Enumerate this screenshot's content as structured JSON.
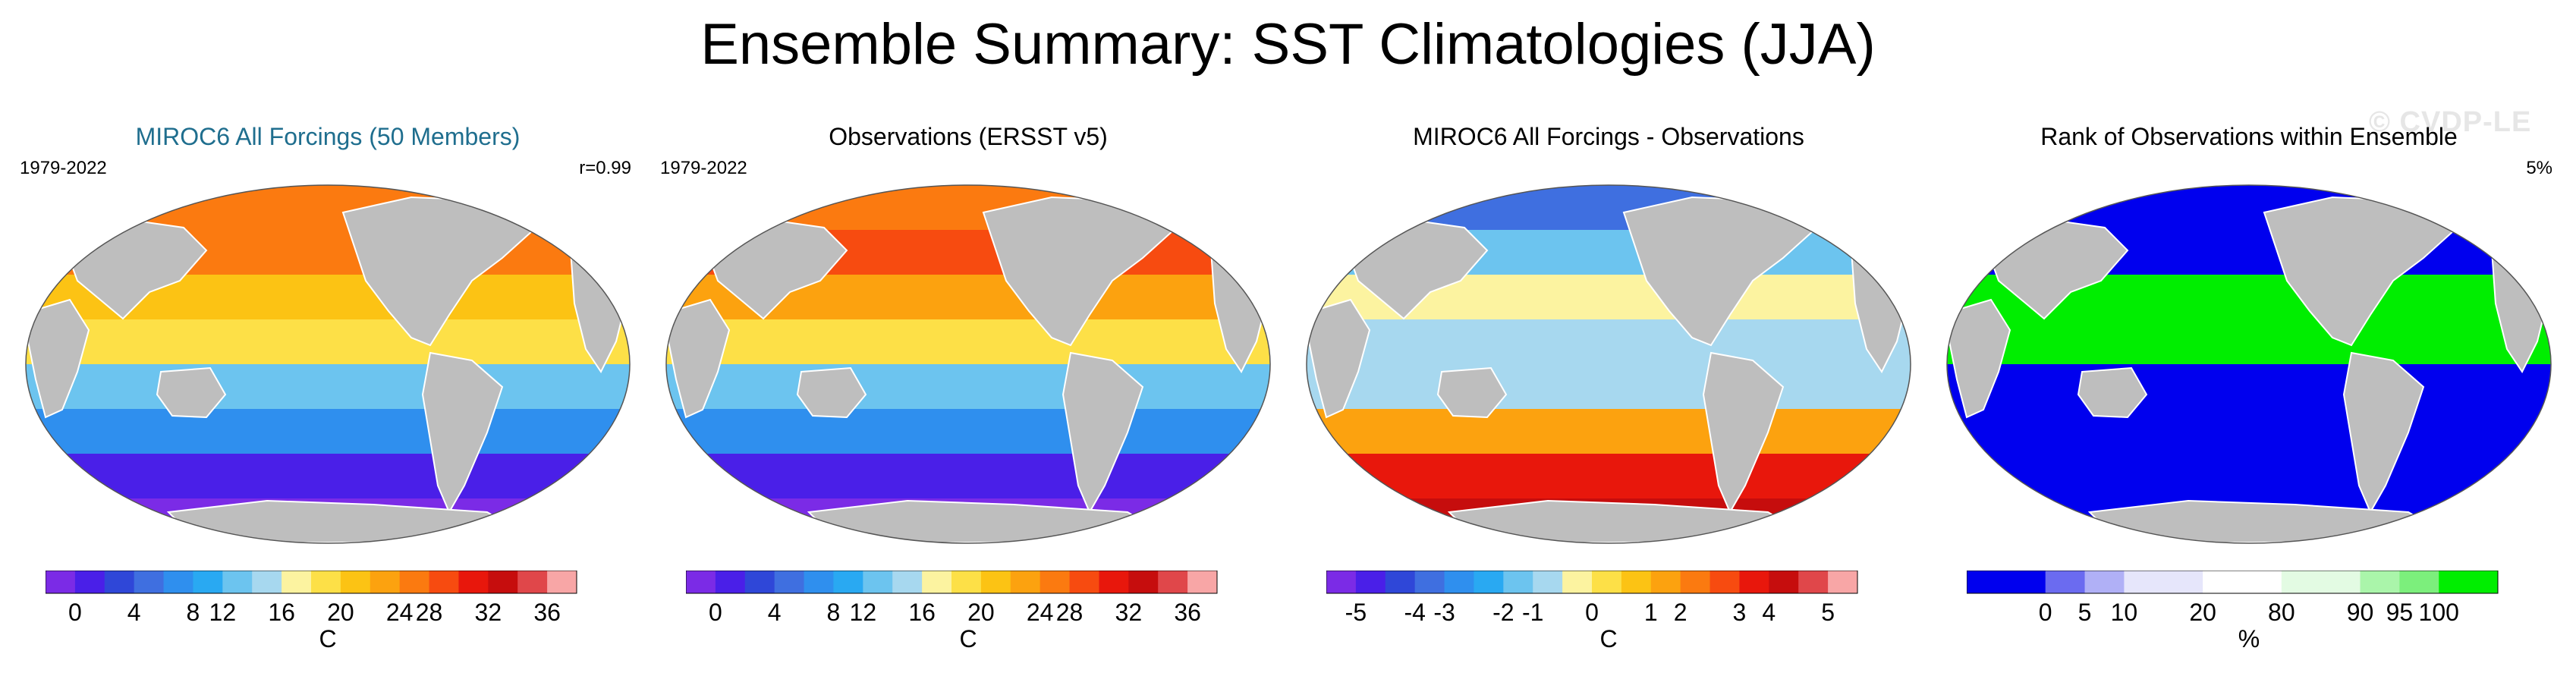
{
  "figure": {
    "title": "Ensemble Summary: SST Climatologies (JJA)",
    "watermark": "© CVDP-LE"
  },
  "panels": [
    {
      "title": "MIROC6 All Forcings (50 Members)",
      "left_label": "1979-2022",
      "right_label": "r=0.99",
      "unit": "C",
      "colors": [
        "#7b2be6",
        "#4a1fe8",
        "#2f47d8",
        "#3f6fe0",
        "#2f8fee",
        "#29a9f2",
        "#6cc4ef",
        "#a7d8ef",
        "#fcf3a0",
        "#fde047",
        "#fcc314",
        "#fca20f",
        "#fb7a10",
        "#f74b10",
        "#e8170c",
        "#c60d0d",
        "#e0474a",
        "#f8a6a6"
      ],
      "ticks": [
        "0",
        "4",
        "8",
        "12",
        "16",
        "20",
        "24",
        "28",
        "32",
        "36"
      ],
      "bands": [
        "#fb7a10",
        "#fb7a10",
        "#fcc314",
        "#fde047",
        "#6cc4ef",
        "#2f8fee",
        "#4a1fe8",
        "#7b2be6"
      ]
    },
    {
      "title": "Observations (ERSST v5)",
      "left_label": "1979-2022",
      "right_label": "",
      "unit": "C",
      "colors": [
        "#7b2be6",
        "#4a1fe8",
        "#2f47d8",
        "#3f6fe0",
        "#2f8fee",
        "#29a9f2",
        "#6cc4ef",
        "#a7d8ef",
        "#fcf3a0",
        "#fde047",
        "#fcc314",
        "#fca20f",
        "#fb7a10",
        "#f74b10",
        "#e8170c",
        "#c60d0d",
        "#e0474a",
        "#f8a6a6"
      ],
      "ticks": [
        "0",
        "4",
        "8",
        "12",
        "16",
        "20",
        "24",
        "28",
        "32",
        "36"
      ],
      "bands": [
        "#fb7a10",
        "#f74b10",
        "#fca20f",
        "#fde047",
        "#6cc4ef",
        "#2f8fee",
        "#4a1fe8",
        "#7b2be6"
      ]
    },
    {
      "title": "MIROC6 All Forcings - Observations",
      "left_label": "",
      "right_label": "",
      "unit": "C",
      "colors": [
        "#7b2be6",
        "#4a1fe8",
        "#2f47d8",
        "#3f6fe0",
        "#2f8fee",
        "#29a9f2",
        "#6cc4ef",
        "#a7d8ef",
        "#fcf3a0",
        "#fde047",
        "#fcc314",
        "#fca20f",
        "#fb7a10",
        "#f74b10",
        "#e8170c",
        "#c60d0d",
        "#e0474a",
        "#f8a6a6"
      ],
      "ticks": [
        "-5",
        "-4",
        "-3",
        "-2",
        "-1",
        "0",
        "1",
        "2",
        "3",
        "4",
        "5"
      ],
      "bands": [
        "#3f6fe0",
        "#6cc4ef",
        "#fcf3a0",
        "#a7d8ef",
        "#a7d8ef",
        "#fca20f",
        "#e8170c",
        "#c60d0d"
      ]
    },
    {
      "title": "Rank of Observations within Ensemble",
      "left_label": "",
      "right_label": "5%",
      "unit": "%",
      "colors": [
        "#0000ee",
        "#6b6bf0",
        "#b0b0f6",
        "#e6e6fb",
        "#ffffff",
        "#e3fbe3",
        "#aaf5aa",
        "#7cef7c",
        "#00ee00"
      ],
      "widths": [
        2,
        1,
        1,
        2,
        2,
        2,
        1,
        1,
        1.5
      ],
      "ticks": [
        "0",
        "5",
        "10",
        "20",
        "80",
        "90",
        "95",
        "100"
      ],
      "bands": [
        "#0000ee",
        "#0000ee",
        "#00ee00",
        "#00ee00",
        "#0000ee",
        "#0000ee",
        "#0000ee",
        "#0000ee"
      ]
    }
  ]
}
